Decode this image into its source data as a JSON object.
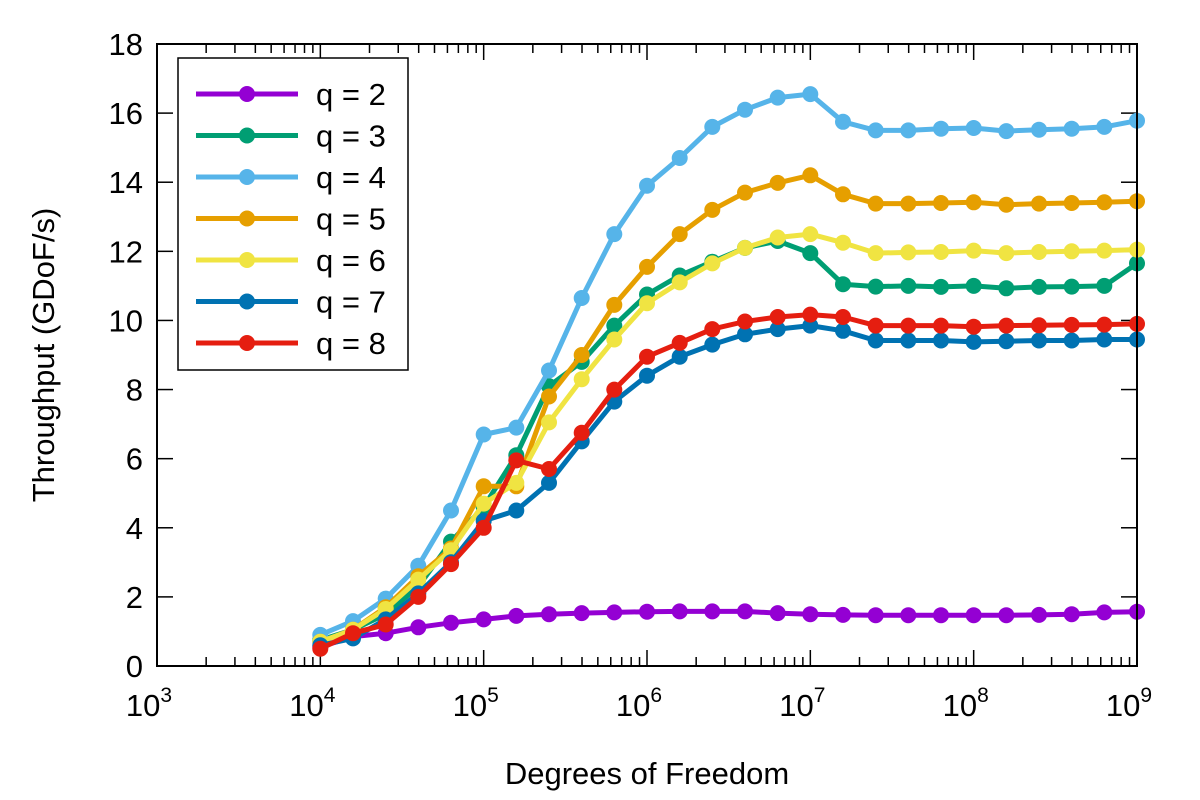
{
  "chart_data": {
    "type": "line",
    "xlabel": "Degrees of Freedom",
    "ylabel": "Throughput (GDoF/s)",
    "xscale": "log",
    "xlim": [
      1000,
      1000000000
    ],
    "ylim": [
      0,
      18
    ],
    "x_ticks": [
      {
        "base": "10",
        "exp": "3",
        "value": 1000
      },
      {
        "base": "10",
        "exp": "4",
        "value": 10000
      },
      {
        "base": "10",
        "exp": "5",
        "value": 100000
      },
      {
        "base": "10",
        "exp": "6",
        "value": 1000000
      },
      {
        "base": "10",
        "exp": "7",
        "value": 10000000
      },
      {
        "base": "10",
        "exp": "8",
        "value": 100000000
      },
      {
        "base": "10",
        "exp": "9",
        "value": 1000000000
      }
    ],
    "y_ticks": [
      "0",
      "2",
      "4",
      "6",
      "8",
      "10",
      "12",
      "14",
      "16",
      "18"
    ],
    "grid": false,
    "legend_position": "top-left",
    "x": [
      10000,
      15849,
      25119,
      39811,
      63096,
      100000,
      158489,
      251189,
      398107,
      630957,
      1000000,
      1584893,
      2511886,
      3981072,
      6309573,
      10000000,
      15848932,
      25118864,
      39810717,
      63095734,
      100000000,
      158489319,
      251188643,
      398107171,
      630957344,
      1000000000
    ],
    "series": [
      {
        "name": "q = 2",
        "color": "#9400d3",
        "values": [
          0.55,
          0.85,
          0.95,
          1.12,
          1.25,
          1.35,
          1.45,
          1.5,
          1.53,
          1.55,
          1.57,
          1.58,
          1.58,
          1.58,
          1.53,
          1.5,
          1.48,
          1.47,
          1.47,
          1.47,
          1.47,
          1.47,
          1.48,
          1.5,
          1.55,
          1.57
        ]
      },
      {
        "name": "q = 3",
        "color": "#009e73",
        "values": [
          0.75,
          1.05,
          1.5,
          2.3,
          3.6,
          4.6,
          6.1,
          8.1,
          8.8,
          9.85,
          10.75,
          11.3,
          11.7,
          12.1,
          12.3,
          11.95,
          11.05,
          10.98,
          11.0,
          10.97,
          11.0,
          10.93,
          10.97,
          10.98,
          11.0,
          11.65
        ]
      },
      {
        "name": "q = 4",
        "color": "#56b4e9",
        "values": [
          0.9,
          1.3,
          1.95,
          2.9,
          4.5,
          6.7,
          6.9,
          8.55,
          10.65,
          12.5,
          13.9,
          14.7,
          15.6,
          16.1,
          16.45,
          16.55,
          15.75,
          15.5,
          15.5,
          15.55,
          15.57,
          15.48,
          15.52,
          15.55,
          15.6,
          15.78
        ]
      },
      {
        "name": "q = 5",
        "color": "#e69f00",
        "values": [
          0.7,
          1.05,
          1.7,
          2.6,
          3.4,
          5.2,
          5.2,
          7.8,
          9.0,
          10.45,
          11.55,
          12.5,
          13.2,
          13.7,
          13.98,
          14.2,
          13.65,
          13.38,
          13.38,
          13.4,
          13.42,
          13.35,
          13.38,
          13.4,
          13.42,
          13.45
        ]
      },
      {
        "name": "q = 6",
        "color": "#f0e442",
        "values": [
          0.7,
          1.05,
          1.65,
          2.5,
          3.35,
          4.7,
          5.3,
          7.05,
          8.3,
          9.45,
          10.5,
          11.1,
          11.65,
          12.1,
          12.4,
          12.5,
          12.25,
          11.95,
          11.97,
          11.98,
          12.02,
          11.95,
          11.98,
          12.0,
          12.02,
          12.05
        ]
      },
      {
        "name": "q = 7",
        "color": "#0072b2",
        "values": [
          0.6,
          0.8,
          1.35,
          2.1,
          3.0,
          4.2,
          4.5,
          5.3,
          6.5,
          7.65,
          8.4,
          8.95,
          9.3,
          9.6,
          9.75,
          9.85,
          9.7,
          9.42,
          9.42,
          9.42,
          9.38,
          9.4,
          9.42,
          9.42,
          9.45,
          9.45
        ]
      },
      {
        "name": "q = 8",
        "color": "#e51e10",
        "values": [
          0.5,
          0.95,
          1.2,
          2.0,
          2.95,
          4.0,
          5.95,
          5.7,
          6.75,
          8.0,
          8.95,
          9.35,
          9.75,
          9.97,
          10.1,
          10.17,
          10.1,
          9.85,
          9.85,
          9.85,
          9.82,
          9.85,
          9.86,
          9.87,
          9.88,
          9.9
        ]
      }
    ]
  }
}
